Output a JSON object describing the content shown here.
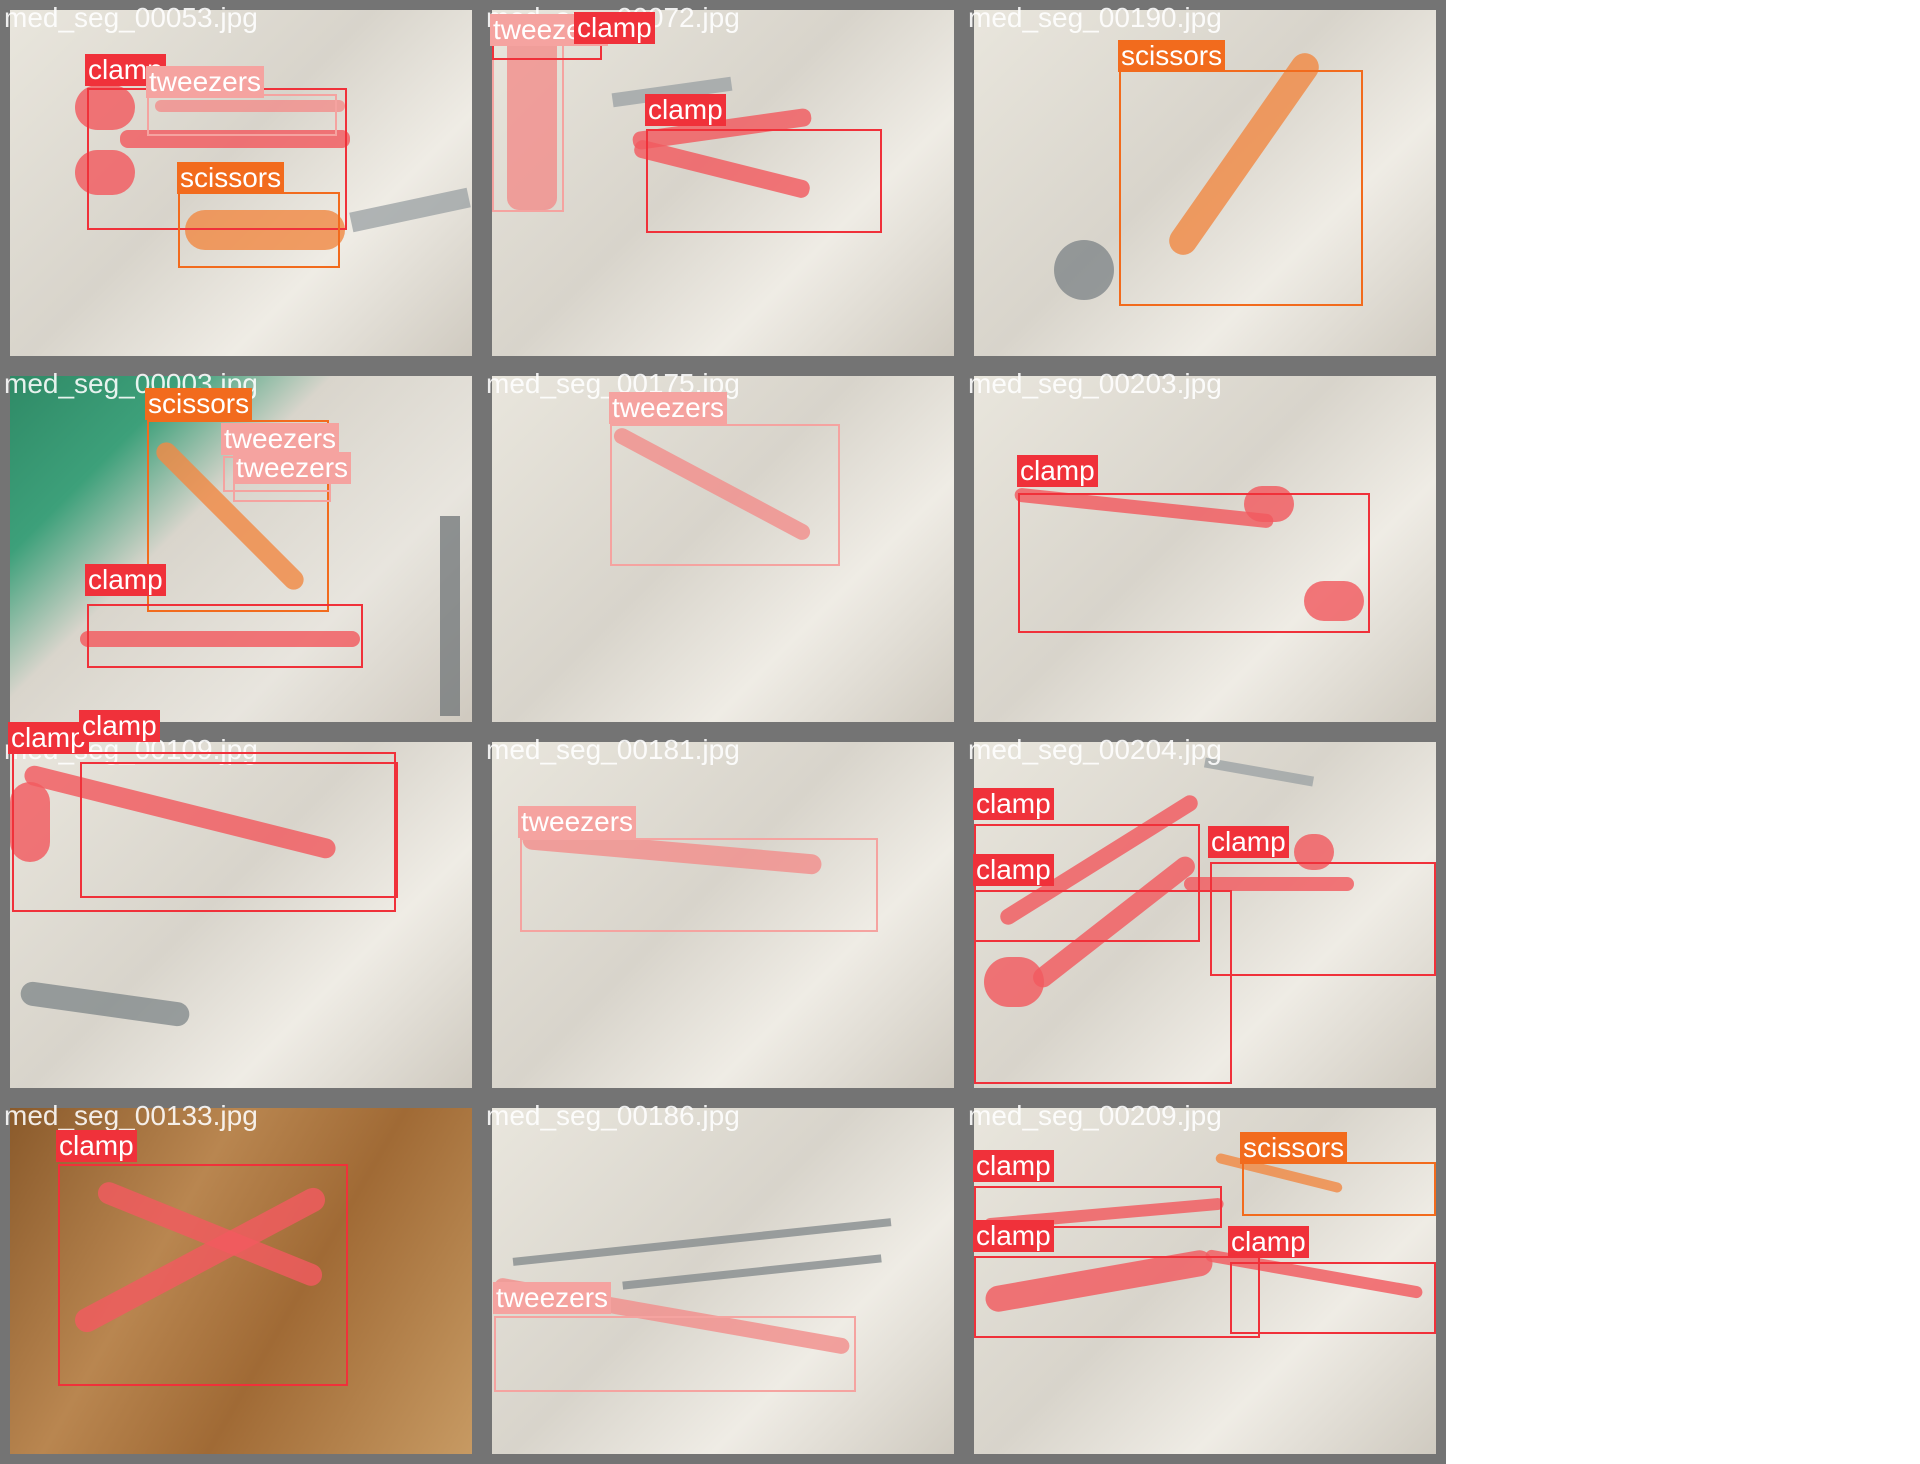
{
  "colors": {
    "clamp": "#f0313a",
    "tweezers": "#f5a3a0",
    "scissors": "#f26b1d",
    "border": "#747474"
  },
  "tiles": [
    {
      "file": "med_seg_00053.jpg",
      "labels": [
        "clamp",
        "tweezers",
        "scissors"
      ]
    },
    {
      "file": "med_seg_00072.jpg",
      "labels": [
        "tweezers",
        "clamp",
        "clamp"
      ]
    },
    {
      "file": "med_seg_00190.jpg",
      "labels": [
        "scissors"
      ]
    },
    {
      "file": "med_seg_00003.jpg",
      "labels": [
        "scissors",
        "tweezers",
        "tweezers",
        "clamp"
      ]
    },
    {
      "file": "med_seg_00175.jpg",
      "labels": [
        "tweezers"
      ]
    },
    {
      "file": "med_seg_00203.jpg",
      "labels": [
        "clamp"
      ]
    },
    {
      "file": "med_seg_00109.jpg",
      "labels": [
        "clamp",
        "clamp"
      ]
    },
    {
      "file": "med_seg_00181.jpg",
      "labels": [
        "tweezers"
      ]
    },
    {
      "file": "med_seg_00204.jpg",
      "labels": [
        "clamp",
        "clamp",
        "clamp"
      ]
    },
    {
      "file": "med_seg_00133.jpg",
      "labels": [
        "clamp"
      ]
    },
    {
      "file": "med_seg_00186.jpg",
      "labels": [
        "tweezers"
      ]
    },
    {
      "file": "med_seg_00209.jpg",
      "labels": [
        "clamp",
        "clamp",
        "scissors",
        "clamp"
      ]
    }
  ]
}
